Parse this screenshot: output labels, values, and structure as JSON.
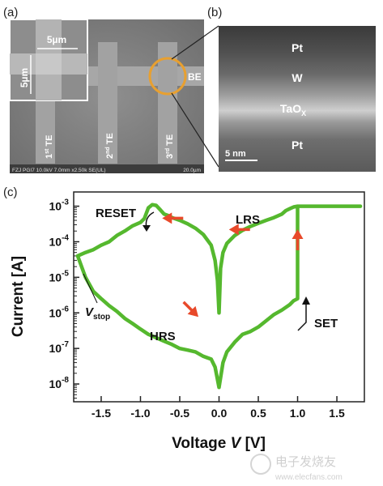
{
  "panels": {
    "a": {
      "label": "(a)",
      "inset_scale_h": "5µm",
      "inset_scale_v": "5µm",
      "be_label": "BE",
      "te_labels": [
        {
          "base": "1",
          "sup": "st",
          "rest": " TE"
        },
        {
          "base": "2",
          "sup": "nd",
          "rest": " TE"
        },
        {
          "base": "3",
          "sup": "rd",
          "rest": " TE"
        }
      ],
      "info_left": "FZJ PGI7 10.0kV 7.0mm x2.50k SE(UL)",
      "info_right": "20.0µm",
      "highlight_color": "#e8a030"
    },
    "b": {
      "label": "(b)",
      "layers": [
        {
          "base": "Pt",
          "sub": ""
        },
        {
          "base": "W",
          "sub": ""
        },
        {
          "base": "TaO",
          "sub": "X"
        },
        {
          "base": "Pt",
          "sub": ""
        }
      ],
      "scale_bar": "5 nm"
    },
    "c": {
      "label": "(c)"
    }
  },
  "watermark": {
    "cn": "电子发烧友",
    "url": "www.elecfans.com"
  },
  "chart_data": {
    "type": "line",
    "xlabel": "Voltage",
    "xlabel_symbol": "V",
    "xlabel_unit": "[V]",
    "ylabel": "Current [A]",
    "xlim": [
      -1.85,
      1.85
    ],
    "ylim_log10": [
      -8.5,
      -2.6
    ],
    "y_scale": "log",
    "xticks": [
      -1.5,
      -1.0,
      -0.5,
      0.0,
      0.5,
      1.0,
      1.5
    ],
    "xtick_labels": [
      "-1.5",
      "-1.0",
      "-0.5",
      "0.0",
      "0.5",
      "1.0",
      "1.5"
    ],
    "yticks_exp": [
      -3,
      -4,
      -5,
      -6,
      -7,
      -8
    ],
    "ytick_base": "10",
    "line_color": "#55b82e",
    "arrow_color": "#e8492a",
    "series": [
      {
        "x": [
          1.0,
          0.95,
          0.9,
          0.85,
          0.8,
          0.7,
          0.6,
          0.5,
          0.4,
          0.3,
          0.2,
          0.1,
          0.05,
          0.02,
          0.0,
          -0.02,
          -0.05,
          -0.1,
          -0.2,
          -0.3,
          -0.4,
          -0.5,
          -0.6,
          -0.65,
          -0.7,
          -0.75,
          -0.8,
          -0.85,
          -0.9,
          -0.95,
          -1.0,
          -1.1,
          -1.2,
          -1.3,
          -1.4,
          -1.5,
          -1.6,
          -1.7,
          -1.8,
          -1.7,
          -1.6,
          -1.5,
          -1.4,
          -1.3,
          -1.2,
          -1.1,
          -1.0,
          -0.9,
          -0.8,
          -0.7,
          -0.6,
          -0.5,
          -0.4,
          -0.3,
          -0.2,
          -0.1,
          -0.05,
          0.0,
          0.05,
          0.1,
          0.2,
          0.3,
          0.4,
          0.5,
          0.6,
          0.7,
          0.8,
          0.9,
          0.95,
          1.0,
          1.0,
          1.0,
          1.05,
          1.2,
          1.4,
          1.6,
          1.8
        ],
        "y": [
          0.001,
          0.00095,
          0.00085,
          0.00075,
          0.0006,
          0.00048,
          0.0004,
          0.00033,
          0.00027,
          0.00021,
          0.00015,
          9e-05,
          5e-05,
          1.8e-05,
          1e-06,
          8e-06,
          3e-05,
          8e-05,
          0.00016,
          0.00024,
          0.00032,
          0.0004,
          0.00048,
          0.00055,
          0.0006,
          0.0008,
          0.00105,
          0.0011,
          0.0009,
          0.00045,
          0.00035,
          0.00028,
          0.0002,
          0.00015,
          0.0001,
          8e-05,
          6e-05,
          5e-05,
          4e-05,
          1e-05,
          4e-06,
          2.5e-06,
          1.6e-06,
          1.1e-06,
          7e-07,
          5e-07,
          3.5e-07,
          2.5e-07,
          2e-07,
          1.6e-07,
          1.3e-07,
          1e-07,
          9e-08,
          8e-08,
          6e-08,
          5e-08,
          3e-08,
          8e-09,
          4e-08,
          8e-08,
          1.5e-07,
          2.5e-07,
          3e-07,
          4e-07,
          6e-07,
          9e-07,
          1.2e-06,
          1.7e-06,
          2.2e-06,
          2.5e-06,
          1e-05,
          0.001,
          0.001,
          0.001,
          0.001,
          0.001,
          0.001
        ]
      }
    ],
    "annotations": [
      {
        "text": "RESET",
        "sub": "",
        "italic": false
      },
      {
        "text": "LRS",
        "sub": "",
        "italic": false
      },
      {
        "text": "HRS",
        "sub": "",
        "italic": false
      },
      {
        "text": "SET",
        "sub": "",
        "italic": false
      },
      {
        "text": "V",
        "sub": "stop",
        "italic": true
      }
    ],
    "direction_arrows": [
      {
        "x": -0.6,
        "y": 0.00046,
        "dir": "left"
      },
      {
        "x": 0.25,
        "y": 0.00022,
        "dir": "left"
      },
      {
        "x": -0.35,
        "y": 1.2e-06,
        "dir": "down-right"
      },
      {
        "x": 1.0,
        "y": 0.00012,
        "dir": "up"
      }
    ]
  }
}
